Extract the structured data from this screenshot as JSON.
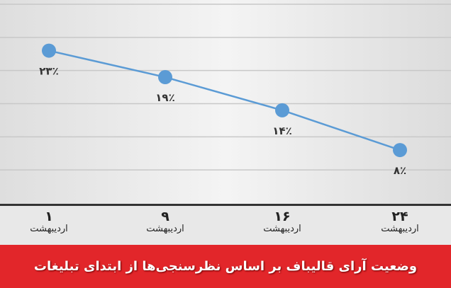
{
  "chart_data": {
    "type": "line",
    "title": "وضعیت آرای قالیباف بر اساس نظرسنجی‌ها از ابتدای تبلیغات",
    "categories": [
      {
        "day": "۱",
        "month": "اردیبهشت"
      },
      {
        "day": "۹",
        "month": "اردیبهشت"
      },
      {
        "day": "۱۶",
        "month": "اردیبهشت"
      },
      {
        "day": "۲۴",
        "month": "اردیبهشت"
      }
    ],
    "values": [
      23,
      19,
      14,
      8
    ],
    "data_labels": [
      "۲۳٪",
      "۱۹٪",
      "۱۴٪",
      "۸٪"
    ],
    "unit": "%",
    "ylim": [
      0,
      30
    ],
    "grid": true,
    "grid_step": 5,
    "colors": {
      "line": "#5b9bd5",
      "marker": "#5b9bd5",
      "title_bar": "#e2262a",
      "title_text": "#ffffff"
    }
  }
}
